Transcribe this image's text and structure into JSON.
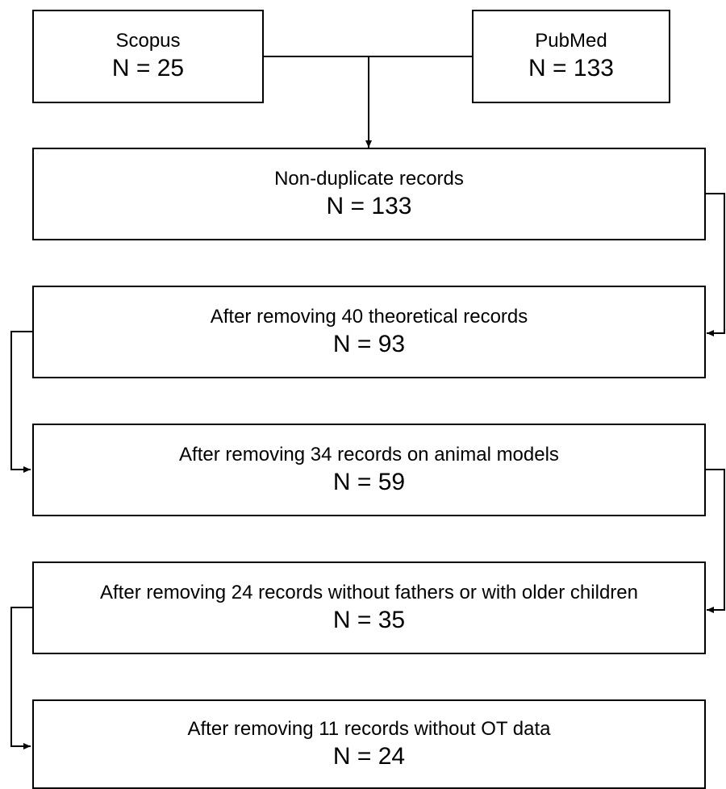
{
  "sources": [
    {
      "label": "Scopus",
      "count": "N = 25"
    },
    {
      "label": "PubMed",
      "count": "N = 133"
    }
  ],
  "steps": [
    {
      "label": "Non-duplicate records",
      "count": "N = 133"
    },
    {
      "label": "After removing 40 theoretical records",
      "count": "N = 93"
    },
    {
      "label": "After removing 34 records on animal models",
      "count": "N = 59"
    },
    {
      "label": "After removing 24 records without fathers or with older children",
      "count": "N = 35"
    },
    {
      "label": "After removing 11 records without OT data",
      "count": "N = 24"
    }
  ]
}
